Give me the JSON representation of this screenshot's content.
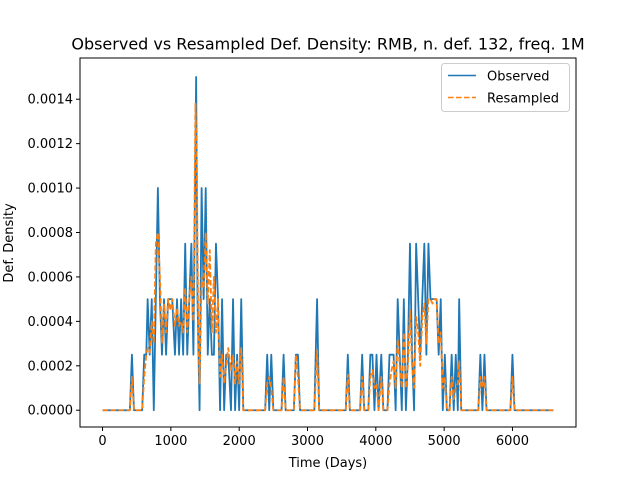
{
  "chart_data": {
    "type": "line",
    "title": "Observed vs Resampled Def. Density: RMB, n. def. 132, freq. 1M",
    "xlabel": "Time (Days)",
    "ylabel": "Def. Density",
    "xlim": [
      -330,
      6930
    ],
    "ylim": [
      -7.55e-05,
      0.0015855
    ],
    "x_ticks": [
      0,
      1000,
      2000,
      3000,
      4000,
      5000,
      6000
    ],
    "x_tick_labels": [
      "0",
      "1000",
      "2000",
      "3000",
      "4000",
      "5000",
      "6000"
    ],
    "y_ticks": [
      0,
      0.0002,
      0.0004,
      0.0006,
      0.0008,
      0.001,
      0.0012,
      0.0014
    ],
    "y_tick_labels": [
      "0.0000",
      "0.0002",
      "0.0004",
      "0.0006",
      "0.0008",
      "0.0010",
      "0.0012",
      "0.0014"
    ],
    "grid": false,
    "legend_position": "top-right",
    "series": [
      {
        "name": "Observed",
        "color": "#1f77b4",
        "style": "solid",
        "points": [
          [
            0,
            0
          ],
          [
            400,
            0
          ],
          [
            430,
            0.00025
          ],
          [
            460,
            0
          ],
          [
            580,
            0
          ],
          [
            610,
            0.00025
          ],
          [
            640,
            0.00025
          ],
          [
            660,
            0.0005
          ],
          [
            690,
            0.00025
          ],
          [
            720,
            0.0005
          ],
          [
            750,
            0
          ],
          [
            780,
            0.0005
          ],
          [
            810,
            0.001
          ],
          [
            840,
            0.0005
          ],
          [
            870,
            0.00025
          ],
          [
            900,
            0.0005
          ],
          [
            930,
            0.00025
          ],
          [
            960,
            0.0005
          ],
          [
            990,
            0.0005
          ],
          [
            1020,
            0.0005
          ],
          [
            1060,
            0.00025
          ],
          [
            1090,
            0.0005
          ],
          [
            1120,
            0.00025
          ],
          [
            1150,
            0.0005
          ],
          [
            1180,
            0.00025
          ],
          [
            1210,
            0.00075
          ],
          [
            1240,
            0.00025
          ],
          [
            1270,
            0.0005
          ],
          [
            1300,
            0.00075
          ],
          [
            1330,
            0.00025
          ],
          [
            1370,
            0.0015
          ],
          [
            1390,
            0.0005
          ],
          [
            1420,
            0
          ],
          [
            1450,
            0.001
          ],
          [
            1480,
            0.0005
          ],
          [
            1510,
            0.001
          ],
          [
            1540,
            0.00025
          ],
          [
            1570,
            0.0005
          ],
          [
            1600,
            0.00025
          ],
          [
            1630,
            0.00025
          ],
          [
            1660,
            0.00075
          ],
          [
            1690,
            0.0005
          ],
          [
            1720,
            0
          ],
          [
            1750,
            0.0005
          ],
          [
            1780,
            0
          ],
          [
            1810,
            0.00025
          ],
          [
            1840,
            0.00025
          ],
          [
            1880,
            0
          ],
          [
            1910,
            0.0005
          ],
          [
            1940,
            0
          ],
          [
            1970,
            0.00025
          ],
          [
            2000,
            0
          ],
          [
            2030,
            0.0005
          ],
          [
            2060,
            0
          ],
          [
            2380,
            0
          ],
          [
            2410,
            0.00025
          ],
          [
            2440,
            0
          ],
          [
            2470,
            0.00025
          ],
          [
            2500,
            0
          ],
          [
            2620,
            0
          ],
          [
            2650,
            0.00025
          ],
          [
            2680,
            0
          ],
          [
            2800,
            0
          ],
          [
            2830,
            0.00025
          ],
          [
            2860,
            0.00025
          ],
          [
            2890,
            0
          ],
          [
            3100,
            0
          ],
          [
            3140,
            0.0005
          ],
          [
            3170,
            0
          ],
          [
            3560,
            0
          ],
          [
            3590,
            0.00025
          ],
          [
            3620,
            0
          ],
          [
            3770,
            0
          ],
          [
            3800,
            0.00025
          ],
          [
            3830,
            0
          ],
          [
            3890,
            0
          ],
          [
            3920,
            0.00025
          ],
          [
            3950,
            0.00025
          ],
          [
            3980,
            0
          ],
          [
            4010,
            0.00025
          ],
          [
            4040,
            0
          ],
          [
            4080,
            0.00025
          ],
          [
            4110,
            0
          ],
          [
            4170,
            0
          ],
          [
            4200,
            0.00025
          ],
          [
            4230,
            0.00025
          ],
          [
            4260,
            0.00025
          ],
          [
            4290,
            0
          ],
          [
            4320,
            0.0005
          ],
          [
            4350,
            0.00025
          ],
          [
            4380,
            0
          ],
          [
            4410,
            0.0005
          ],
          [
            4440,
            0
          ],
          [
            4470,
            0.00025
          ],
          [
            4500,
            0.00075
          ],
          [
            4530,
            0.00025
          ],
          [
            4560,
            0
          ],
          [
            4590,
            0.00075
          ],
          [
            4620,
            0.0005
          ],
          [
            4650,
            0.00025
          ],
          [
            4680,
            0.0005
          ],
          [
            4710,
            0.00075
          ],
          [
            4740,
            0.00025
          ],
          [
            4770,
            0.00075
          ],
          [
            4800,
            0.0005
          ],
          [
            4830,
            0.0005
          ],
          [
            4860,
            0.0005
          ],
          [
            4890,
            0.0005
          ],
          [
            4920,
            0.00025
          ],
          [
            4950,
            0.0005
          ],
          [
            4980,
            0
          ],
          [
            5010,
            0.00025
          ],
          [
            5040,
            0
          ],
          [
            5080,
            0
          ],
          [
            5110,
            0.00025
          ],
          [
            5140,
            0
          ],
          [
            5170,
            0.00025
          ],
          [
            5200,
            0
          ],
          [
            5220,
            0.0005
          ],
          [
            5250,
            0
          ],
          [
            5500,
            0
          ],
          [
            5530,
            0.00025
          ],
          [
            5560,
            0
          ],
          [
            5590,
            0.00025
          ],
          [
            5620,
            0
          ],
          [
            5970,
            0
          ],
          [
            6000,
            0.00025
          ],
          [
            6030,
            0
          ],
          [
            6600,
            0
          ]
        ]
      },
      {
        "name": "Resampled",
        "color": "#ff7f0e",
        "style": "dashed",
        "points": [
          [
            0,
            0
          ],
          [
            400,
            0
          ],
          [
            430,
            0.00015
          ],
          [
            460,
            0
          ],
          [
            580,
            0
          ],
          [
            610,
            0.00015
          ],
          [
            640,
            0.00025
          ],
          [
            660,
            0.00028
          ],
          [
            690,
            0.00026
          ],
          [
            720,
            0.0004
          ],
          [
            750,
            0.0003
          ],
          [
            780,
            0.00075
          ],
          [
            810,
            0.0008
          ],
          [
            840,
            0.0006
          ],
          [
            870,
            0.0003
          ],
          [
            900,
            0.00048
          ],
          [
            930,
            0.00035
          ],
          [
            960,
            0.0005
          ],
          [
            990,
            0.00045
          ],
          [
            1020,
            0.0005
          ],
          [
            1060,
            0.00038
          ],
          [
            1090,
            0.00046
          ],
          [
            1120,
            0.00038
          ],
          [
            1150,
            0.0004
          ],
          [
            1180,
            0.00035
          ],
          [
            1210,
            0.00055
          ],
          [
            1240,
            0.00035
          ],
          [
            1270,
            0.0005
          ],
          [
            1300,
            0.0006
          ],
          [
            1330,
            0.0004
          ],
          [
            1360,
            0.00138
          ],
          [
            1380,
            0.0011
          ],
          [
            1400,
            0.0004
          ],
          [
            1420,
            0.00012
          ],
          [
            1450,
            0.0006
          ],
          [
            1480,
            0.00055
          ],
          [
            1510,
            0.0008
          ],
          [
            1540,
            0.00048
          ],
          [
            1570,
            0.00072
          ],
          [
            1600,
            0.00035
          ],
          [
            1630,
            0.0006
          ],
          [
            1660,
            0.00035
          ],
          [
            1690,
            0.0005
          ],
          [
            1720,
            0.00015
          ],
          [
            1750,
            0.00025
          ],
          [
            1780,
            0.00012
          ],
          [
            1810,
            0.0002
          ],
          [
            1840,
            0.00028
          ],
          [
            1880,
            0.00018
          ],
          [
            1910,
            0.00025
          ],
          [
            1940,
            0.00012
          ],
          [
            1970,
            0.00022
          ],
          [
            2000,
            0.00012
          ],
          [
            2030,
            0.00028
          ],
          [
            2060,
            0
          ],
          [
            2380,
            0
          ],
          [
            2410,
            0.00012
          ],
          [
            2440,
            0.00015
          ],
          [
            2470,
            0.0001
          ],
          [
            2500,
            0
          ],
          [
            2620,
            0
          ],
          [
            2650,
            0.00015
          ],
          [
            2680,
            0
          ],
          [
            2800,
            0
          ],
          [
            2830,
            0.00025
          ],
          [
            2860,
            0.00015
          ],
          [
            2890,
            0
          ],
          [
            3100,
            0
          ],
          [
            3140,
            0.00027
          ],
          [
            3170,
            0
          ],
          [
            3560,
            0
          ],
          [
            3590,
            0.00016
          ],
          [
            3620,
            0
          ],
          [
            3770,
            0
          ],
          [
            3800,
            0.00015
          ],
          [
            3830,
            0
          ],
          [
            3890,
            0
          ],
          [
            3920,
            0.00015
          ],
          [
            3950,
            0.00018
          ],
          [
            3980,
            0.0001
          ],
          [
            4010,
            0.00012
          ],
          [
            4040,
            0
          ],
          [
            4080,
            0.00015
          ],
          [
            4110,
            0
          ],
          [
            4170,
            0
          ],
          [
            4200,
            0.00012
          ],
          [
            4230,
            0.00018
          ],
          [
            4260,
            0.00022
          ],
          [
            4290,
            0.0001
          ],
          [
            4320,
            0.00032
          ],
          [
            4350,
            0.0002
          ],
          [
            4380,
            0.0001
          ],
          [
            4410,
            0.00035
          ],
          [
            4440,
            0.0001
          ],
          [
            4470,
            0.0002
          ],
          [
            4500,
            0.00045
          ],
          [
            4530,
            0.0002
          ],
          [
            4560,
            0.0001
          ],
          [
            4590,
            0.00042
          ],
          [
            4620,
            0.00035
          ],
          [
            4650,
            0.0002
          ],
          [
            4680,
            0.00042
          ],
          [
            4710,
            0.00048
          ],
          [
            4740,
            0.0003
          ],
          [
            4770,
            0.0005
          ],
          [
            4800,
            0.0005
          ],
          [
            4830,
            0.00048
          ],
          [
            4860,
            0.0005
          ],
          [
            4890,
            0.0005
          ],
          [
            4920,
            0.0003
          ],
          [
            4950,
            0.00035
          ],
          [
            4980,
            0.0001
          ],
          [
            5010,
            0.00015
          ],
          [
            5040,
            0
          ],
          [
            5080,
            0
          ],
          [
            5110,
            0.00015
          ],
          [
            5140,
            5e-05
          ],
          [
            5170,
            0.0001
          ],
          [
            5200,
            0.00012
          ],
          [
            5220,
            0.00022
          ],
          [
            5250,
            0
          ],
          [
            5500,
            0
          ],
          [
            5530,
            0.00015
          ],
          [
            5560,
            0.0001
          ],
          [
            5590,
            0.00015
          ],
          [
            5620,
            0
          ],
          [
            5970,
            0
          ],
          [
            6000,
            0.00015
          ],
          [
            6030,
            0
          ],
          [
            6600,
            0
          ]
        ]
      }
    ]
  }
}
